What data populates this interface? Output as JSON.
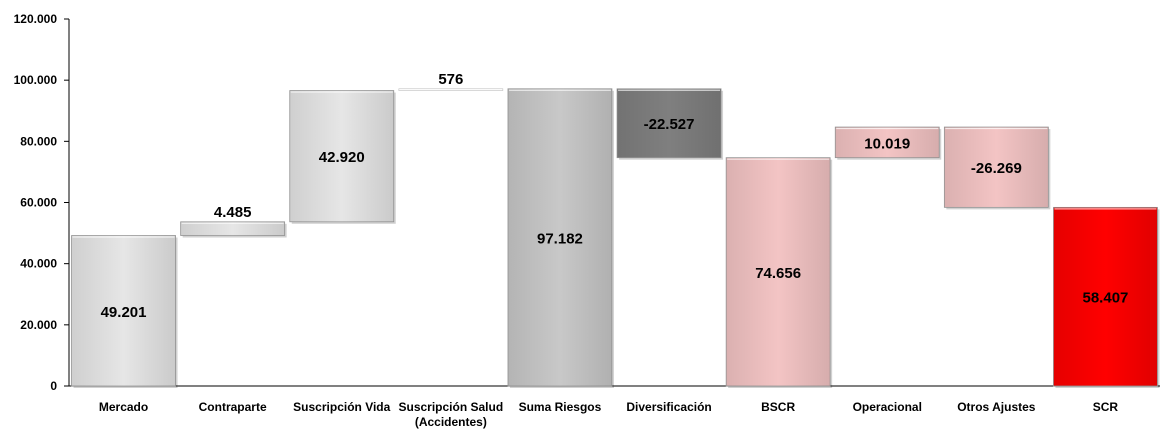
{
  "chart_data": {
    "type": "bar",
    "subtype": "waterfall",
    "title": "",
    "xlabel": "",
    "ylabel": "",
    "ylim": [
      0,
      120000
    ],
    "yticks": [
      0,
      20000,
      40000,
      60000,
      80000,
      100000,
      120000
    ],
    "ytick_labels": [
      "0",
      "20.000",
      "40.000",
      "60.000",
      "80.000",
      "100.000",
      "120.000"
    ],
    "grid": false,
    "legend": "none",
    "categories": [
      "Mercado",
      "Contraparte",
      "Suscripción Vida",
      "Suscripción Salud (Accidentes)",
      "Suma Riesgos",
      "Diversificación",
      "BSCR",
      "Operacional",
      "Otros Ajustes",
      "SCR"
    ],
    "category_lines": [
      [
        "Mercado"
      ],
      [
        "Contraparte"
      ],
      [
        "Suscripción Vida"
      ],
      [
        "Suscripción Salud",
        "(Accidentes)"
      ],
      [
        "Suma Riesgos"
      ],
      [
        "Diversificación"
      ],
      [
        "BSCR"
      ],
      [
        "Operacional"
      ],
      [
        "Otros Ajustes"
      ],
      [
        "SCR"
      ]
    ],
    "values": [
      49201,
      4485,
      42920,
      576,
      97182,
      -22527,
      74656,
      10019,
      -26269,
      58407
    ],
    "bar_kind": [
      "increase",
      "increase",
      "increase",
      "increase",
      "total",
      "decrease",
      "total",
      "increase",
      "decrease",
      "total"
    ],
    "data_labels": [
      "49.201",
      "4.485",
      "42.920",
      "576",
      "97.182",
      "-22.527",
      "74.656",
      "10.019",
      "-26.269",
      "58.407"
    ],
    "colors": [
      "#e6e6e6",
      "#e6e6e6",
      "#e6e6e6",
      "#ffffff",
      "#c8c8c8",
      "#7f7f7f",
      "#f3c4c4",
      "#f3c4c4",
      "#f3c4c4",
      "#ff0000"
    ]
  }
}
